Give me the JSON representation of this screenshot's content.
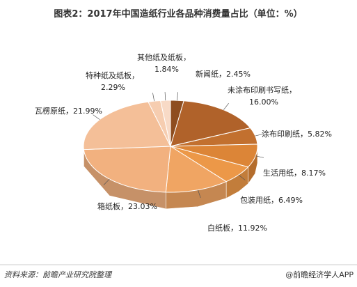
{
  "chart_data": {
    "type": "pie3d",
    "title": "图表2：2017年中国造纸行业各品种消费量占比（单位：%）",
    "categories": [
      "新闻纸，",
      "未涂布印刷书写纸，",
      "涂布印刷纸，",
      "生活用纸，",
      "包装用纸，",
      "白纸板，",
      "箱纸板，",
      "瓦楞原纸，",
      "特种纸及纸板，",
      "其他纸及纸板，"
    ],
    "values": [
      2.45,
      16.0,
      5.82,
      8.17,
      6.49,
      11.92,
      23.03,
      21.99,
      2.29,
      1.84
    ],
    "value_labels": [
      "2.45%",
      "16.00%",
      "5.82%",
      "8.17%",
      "6.49%",
      "11.92%",
      "23.03%",
      "21.99%",
      "2.29%",
      "1.84%"
    ],
    "colors": [
      "#8e4d1f",
      "#b0622a",
      "#c2702f",
      "#dc8537",
      "#ec9848",
      "#f0a563",
      "#f2b17f",
      "#f4bf98",
      "#f6cdb0",
      "#f8dac6"
    ],
    "source": "资料来源：前瞻产业研究院整理",
    "brand": "@前瞻经济学人APP"
  }
}
